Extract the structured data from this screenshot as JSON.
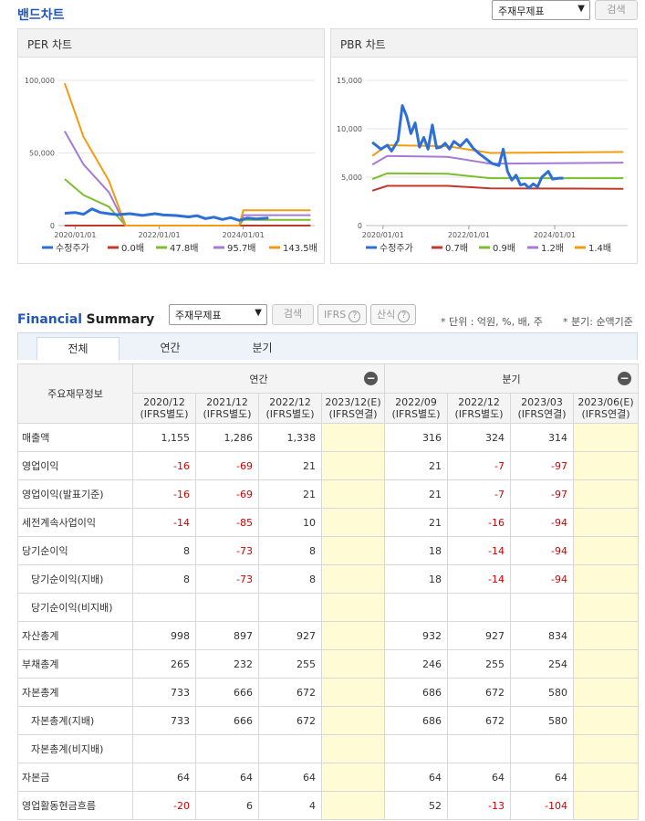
{
  "band": {
    "title": "밴드차트",
    "select_value": "주재무제표",
    "search_label": "검색"
  },
  "per_chart": {
    "title": "PER 차트",
    "chart_data": {
      "type": "line",
      "y_ticks": [
        "100,000",
        "50,000",
        "0"
      ],
      "ylim": [
        0,
        100000
      ],
      "x_ticks": [
        "2020/01/01",
        "2022/01/01",
        "2024/01/01"
      ],
      "xlim": [
        2019.6,
        2025.7
      ],
      "legend": [
        "수정주가",
        "0.0배",
        "47.8배",
        "95.7배",
        "143.5배"
      ],
      "series": [
        {
          "name": "수정주가",
          "color": "#2d6fd6",
          "points": [
            [
              2019.75,
              8500
            ],
            [
              2020.0,
              9000
            ],
            [
              2020.2,
              7800
            ],
            [
              2020.4,
              11500
            ],
            [
              2020.6,
              9000
            ],
            [
              2020.8,
              8200
            ],
            [
              2021.0,
              7500
            ],
            [
              2021.3,
              8200
            ],
            [
              2021.6,
              7000
            ],
            [
              2021.9,
              8200
            ],
            [
              2022.1,
              7300
            ],
            [
              2022.4,
              6900
            ],
            [
              2022.7,
              6000
            ],
            [
              2022.9,
              6800
            ],
            [
              2023.1,
              4800
            ],
            [
              2023.3,
              5800
            ],
            [
              2023.5,
              4200
            ],
            [
              2023.7,
              5500
            ],
            [
              2023.9,
              3600
            ],
            [
              2024.1,
              5200
            ],
            [
              2024.3,
              4600
            ],
            [
              2024.6,
              5200
            ]
          ]
        },
        {
          "name": "0.0배",
          "color": "#c0392b",
          "points": [
            [
              2019.75,
              0
            ],
            [
              2025.6,
              0
            ]
          ]
        },
        {
          "name": "47.8배",
          "color": "#7cbf2e",
          "points": [
            [
              2019.75,
              32000
            ],
            [
              2020.2,
              21000
            ],
            [
              2020.8,
              13000
            ],
            [
              2021.2,
              0
            ],
            [
              2023.9,
              0
            ],
            [
              2024.0,
              3900
            ],
            [
              2025.6,
              3900
            ]
          ]
        },
        {
          "name": "95.7배",
          "color": "#a77ad6",
          "points": [
            [
              2019.75,
              65000
            ],
            [
              2020.2,
              42000
            ],
            [
              2020.8,
              23000
            ],
            [
              2021.2,
              0
            ],
            [
              2023.9,
              0
            ],
            [
              2024.0,
              7200
            ],
            [
              2025.6,
              7200
            ]
          ]
        },
        {
          "name": "143.5배",
          "color": "#f39c12",
          "points": [
            [
              2019.75,
              98000
            ],
            [
              2020.2,
              61000
            ],
            [
              2020.8,
              31000
            ],
            [
              2021.2,
              0
            ],
            [
              2023.9,
              0
            ],
            [
              2024.0,
              10500
            ],
            [
              2025.6,
              10500
            ]
          ]
        }
      ]
    }
  },
  "pbr_chart": {
    "title": "PBR 차트",
    "chart_data": {
      "type": "line",
      "y_ticks": [
        "15,000",
        "10,000",
        "5,000",
        "0"
      ],
      "ylim": [
        0,
        15000
      ],
      "x_ticks": [
        "2020/01/01",
        "2022/01/01",
        "2024/01/01"
      ],
      "xlim": [
        2019.6,
        2025.7
      ],
      "legend": [
        "수정주가",
        "0.7배",
        "0.9배",
        "1.2배",
        "1.4배"
      ],
      "series": [
        {
          "name": "수정주가",
          "color": "#2d6fd6",
          "points": [
            [
              2019.75,
              8600
            ],
            [
              2019.95,
              7900
            ],
            [
              2020.1,
              8300
            ],
            [
              2020.2,
              7700
            ],
            [
              2020.35,
              8800
            ],
            [
              2020.45,
              12400
            ],
            [
              2020.55,
              11300
            ],
            [
              2020.65,
              9500
            ],
            [
              2020.75,
              10600
            ],
            [
              2020.85,
              8100
            ],
            [
              2020.95,
              9100
            ],
            [
              2021.05,
              7900
            ],
            [
              2021.15,
              10400
            ],
            [
              2021.25,
              8000
            ],
            [
              2021.35,
              8100
            ],
            [
              2021.45,
              8500
            ],
            [
              2021.55,
              7900
            ],
            [
              2021.65,
              8700
            ],
            [
              2021.8,
              8200
            ],
            [
              2021.95,
              8900
            ],
            [
              2022.1,
              8000
            ],
            [
              2022.25,
              7400
            ],
            [
              2022.4,
              6900
            ],
            [
              2022.55,
              6400
            ],
            [
              2022.7,
              6200
            ],
            [
              2022.8,
              7900
            ],
            [
              2022.9,
              5600
            ],
            [
              2023.0,
              4700
            ],
            [
              2023.1,
              5200
            ],
            [
              2023.2,
              4200
            ],
            [
              2023.3,
              4300
            ],
            [
              2023.4,
              3900
            ],
            [
              2023.5,
              4300
            ],
            [
              2023.6,
              4000
            ],
            [
              2023.7,
              5000
            ],
            [
              2023.85,
              5600
            ],
            [
              2023.95,
              4800
            ],
            [
              2024.1,
              4900
            ],
            [
              2024.2,
              4900
            ]
          ]
        },
        {
          "name": "0.7배",
          "color": "#c0392b",
          "points": [
            [
              2019.75,
              3600
            ],
            [
              2020.1,
              4100
            ],
            [
              2021.5,
              4100
            ],
            [
              2022.5,
              3850
            ],
            [
              2025.6,
              3800
            ]
          ]
        },
        {
          "name": "0.9배",
          "color": "#7cbf2e",
          "points": [
            [
              2019.75,
              4800
            ],
            [
              2020.1,
              5400
            ],
            [
              2021.5,
              5350
            ],
            [
              2022.5,
              4900
            ],
            [
              2025.6,
              4900
            ]
          ]
        },
        {
          "name": "1.2배",
          "color": "#a77ad6",
          "points": [
            [
              2019.75,
              6300
            ],
            [
              2020.1,
              7200
            ],
            [
              2021.5,
              7100
            ],
            [
              2022.5,
              6400
            ],
            [
              2025.6,
              6500
            ]
          ]
        },
        {
          "name": "1.4배",
          "color": "#f39c12",
          "points": [
            [
              2019.75,
              7200
            ],
            [
              2020.1,
              8300
            ],
            [
              2021.5,
              8200
            ],
            [
              2022.5,
              7500
            ],
            [
              2025.6,
              7600
            ]
          ]
        }
      ]
    }
  },
  "summary": {
    "title_a": "Financial",
    "title_b": "Summary",
    "select_value": "주재무제표",
    "search_label": "검색",
    "ifrs_label": "IFRS",
    "calc_label": "산식",
    "unit_note": "* 단위 : 억원, %, 배, 주",
    "period_note": "* 분기: 순액기준",
    "tabs": [
      "전체",
      "연간",
      "분기"
    ],
    "header_label": "주요재무정보",
    "group_annual": "연간",
    "group_quarter": "분기",
    "periods": [
      {
        "date": "2020/12",
        "basis": "(IFRS별도)"
      },
      {
        "date": "2021/12",
        "basis": "(IFRS별도)"
      },
      {
        "date": "2022/12",
        "basis": "(IFRS별도)"
      },
      {
        "date": "2023/12(E)",
        "basis": "(IFRS연결)"
      },
      {
        "date": "2022/09",
        "basis": "(IFRS별도)"
      },
      {
        "date": "2022/12",
        "basis": "(IFRS별도)"
      },
      {
        "date": "2023/03",
        "basis": "(IFRS연결)"
      },
      {
        "date": "2023/06(E)",
        "basis": "(IFRS연결)"
      }
    ],
    "rows": [
      {
        "label": "매출액",
        "sub": false,
        "values": [
          "1,155",
          "1,286",
          "1,338",
          "",
          "316",
          "324",
          "314",
          ""
        ]
      },
      {
        "label": "영업이익",
        "sub": false,
        "values": [
          "-16",
          "-69",
          "21",
          "",
          "21",
          "-7",
          "-97",
          ""
        ]
      },
      {
        "label": "영업이익(발표기준)",
        "sub": false,
        "values": [
          "-16",
          "-69",
          "21",
          "",
          "21",
          "-7",
          "-97",
          ""
        ]
      },
      {
        "label": "세전계속사업이익",
        "sub": false,
        "values": [
          "-14",
          "-85",
          "10",
          "",
          "21",
          "-16",
          "-94",
          ""
        ]
      },
      {
        "label": "당기순이익",
        "sub": false,
        "values": [
          "8",
          "-73",
          "8",
          "",
          "18",
          "-14",
          "-94",
          ""
        ]
      },
      {
        "label": "당기순이익(지배)",
        "sub": true,
        "values": [
          "8",
          "-73",
          "8",
          "",
          "18",
          "-14",
          "-94",
          ""
        ]
      },
      {
        "label": "당기순이익(비지배)",
        "sub": true,
        "values": [
          "",
          "",
          "",
          "",
          "",
          "",
          "",
          ""
        ]
      },
      {
        "label": "자산총계",
        "sub": false,
        "values": [
          "998",
          "897",
          "927",
          "",
          "932",
          "927",
          "834",
          ""
        ]
      },
      {
        "label": "부채총계",
        "sub": false,
        "values": [
          "265",
          "232",
          "255",
          "",
          "246",
          "255",
          "254",
          ""
        ]
      },
      {
        "label": "자본총계",
        "sub": false,
        "values": [
          "733",
          "666",
          "672",
          "",
          "686",
          "672",
          "580",
          ""
        ]
      },
      {
        "label": "자본총계(지배)",
        "sub": true,
        "values": [
          "733",
          "666",
          "672",
          "",
          "686",
          "672",
          "580",
          ""
        ]
      },
      {
        "label": "자본총계(비지배)",
        "sub": true,
        "values": [
          "",
          "",
          "",
          "",
          "",
          "",
          "",
          ""
        ]
      },
      {
        "label": "자본금",
        "sub": false,
        "values": [
          "64",
          "64",
          "64",
          "",
          "64",
          "64",
          "64",
          ""
        ]
      },
      {
        "label": "영업활동현금흐름",
        "sub": false,
        "values": [
          "-20",
          "6",
          "4",
          "",
          "52",
          "-13",
          "-104",
          ""
        ]
      }
    ]
  }
}
